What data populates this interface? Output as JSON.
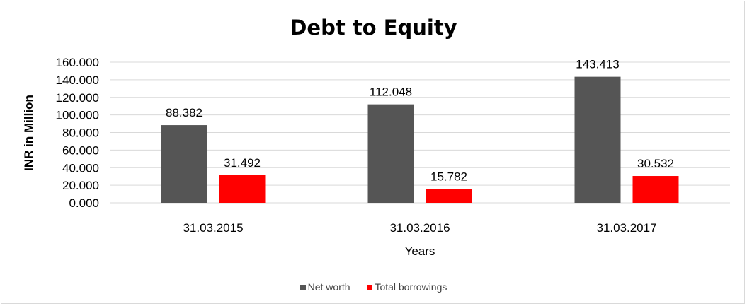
{
  "chart_data": {
    "type": "bar",
    "title": "Debt to Equity",
    "xlabel": "Years",
    "ylabel": "INR in Million",
    "categories": [
      "31.03.2015",
      "31.03.2016",
      "31.03.2017"
    ],
    "series": [
      {
        "name": "Net worth",
        "values": [
          88.382,
          112.048,
          143.413
        ],
        "labels": [
          "88.382",
          "112.048",
          "143.413"
        ],
        "color": "#555555"
      },
      {
        "name": "Total borrowings",
        "values": [
          31.492,
          15.782,
          30.532
        ],
        "labels": [
          "31.492",
          "15.782",
          "30.532"
        ],
        "color": "#ff0000"
      }
    ],
    "ylim": [
      0,
      160
    ],
    "yticks": [
      "0.000",
      "20.000",
      "40.000",
      "60.000",
      "80.000",
      "100.000",
      "120.000",
      "140.000",
      "160.000"
    ],
    "grid": true,
    "legend": "bottom"
  }
}
